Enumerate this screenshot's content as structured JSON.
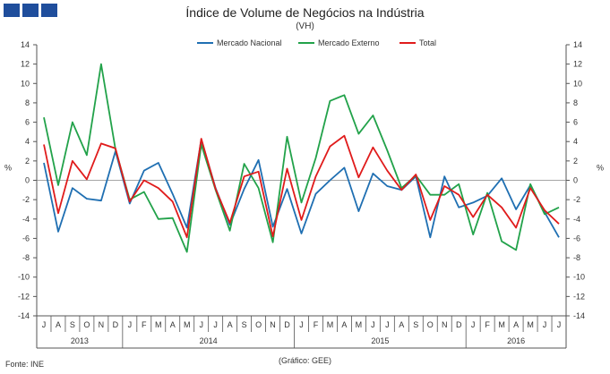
{
  "header": {
    "title": "Índice de Volume de Negócios na Indústria",
    "subtitle": "(VH)"
  },
  "footer": {
    "source": "Fonte: INE",
    "credit": "(Gráfico: GEE)"
  },
  "colors": {
    "nacional": "#1f6fb2",
    "externo": "#22a24a",
    "total": "#e01b1b",
    "axis": "#555555",
    "logo": "#1f4e9c"
  },
  "chart_data": {
    "type": "line",
    "title": "Índice de Volume de Negócios na Indústria",
    "subtitle": "(VH)",
    "ylabel": "%",
    "ylabel_right": "%",
    "ylim": [
      -14,
      14
    ],
    "yticks": [
      14,
      12,
      10,
      8,
      6,
      4,
      2,
      0,
      -2,
      -4,
      -6,
      -8,
      -10,
      -12,
      -14
    ],
    "legend": "top-center",
    "months": [
      "J",
      "A",
      "S",
      "O",
      "N",
      "D",
      "J",
      "F",
      "M",
      "A",
      "M",
      "J",
      "J",
      "A",
      "S",
      "O",
      "N",
      "D",
      "J",
      "F",
      "M",
      "A",
      "M",
      "J",
      "J",
      "A",
      "S",
      "O",
      "N",
      "D",
      "J",
      "F",
      "M",
      "A",
      "M",
      "J",
      "J"
    ],
    "years": [
      {
        "label": "2013",
        "start": 0,
        "end": 5
      },
      {
        "label": "2014",
        "start": 6,
        "end": 17
      },
      {
        "label": "2015",
        "start": 18,
        "end": 29
      },
      {
        "label": "2016",
        "start": 30,
        "end": 36
      }
    ],
    "series": [
      {
        "name": "Mercado Nacional",
        "color": "#1f6fb2",
        "values": [
          1.8,
          -5.3,
          -0.8,
          -1.9,
          -2.1,
          3.0,
          -2.4,
          1.0,
          1.8,
          -1.4,
          -4.9,
          4.2,
          -0.8,
          -4.6,
          -0.9,
          2.1,
          -4.8,
          -0.9,
          -5.5,
          -1.4,
          0.0,
          1.3,
          -3.2,
          0.7,
          -0.6,
          -1.0,
          0.4,
          -5.9,
          0.4,
          -2.8,
          -2.3,
          -1.6,
          0.2,
          -3.0,
          -0.5,
          -3.3,
          -5.9
        ]
      },
      {
        "name": "Mercado Externo",
        "color": "#22a24a",
        "values": [
          6.5,
          -0.5,
          6.0,
          2.6,
          12.0,
          3.2,
          -2.0,
          -1.2,
          -4.0,
          -3.9,
          -7.4,
          3.7,
          -1.0,
          -5.2,
          1.7,
          -0.8,
          -6.4,
          4.5,
          -2.3,
          2.3,
          8.2,
          8.8,
          4.8,
          6.7,
          3.1,
          -0.8,
          0.5,
          -1.5,
          -1.5,
          -0.4,
          -5.6,
          -1.3,
          -6.3,
          -7.2,
          -0.4,
          -3.5,
          -2.8
        ]
      },
      {
        "name": "Total",
        "color": "#e01b1b",
        "values": [
          3.7,
          -3.4,
          2.0,
          0.1,
          3.8,
          3.3,
          -2.2,
          0.0,
          -0.8,
          -2.2,
          -5.9,
          4.3,
          -0.9,
          -4.4,
          0.4,
          0.9,
          -5.8,
          1.2,
          -4.1,
          0.4,
          3.5,
          4.6,
          0.3,
          3.4,
          1.0,
          -1.0,
          0.6,
          -4.1,
          -0.6,
          -1.5,
          -3.8,
          -1.5,
          -2.8,
          -4.9,
          -0.8,
          -3.1,
          -4.5
        ]
      }
    ]
  }
}
